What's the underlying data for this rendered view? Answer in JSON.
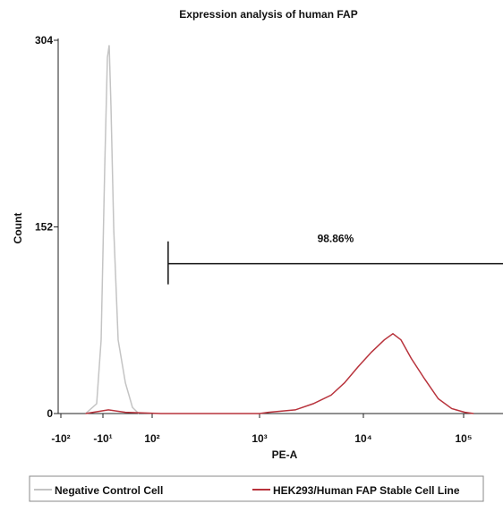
{
  "chart_data": {
    "type": "line",
    "title": "Expression analysis of human FAP",
    "x_label": "PE-A",
    "y_label": "Count",
    "xscale": "biexponential",
    "xlim": [
      -110,
      250000
    ],
    "xticks": [
      {
        "value": -100,
        "label": "-10²"
      },
      {
        "value": -10,
        "label": "-10¹"
      },
      {
        "value": 100,
        "label": "10²"
      },
      {
        "value": 1000,
        "label": "10³"
      },
      {
        "value": 10000,
        "label": "10⁴"
      },
      {
        "value": 100000,
        "label": "10⁵"
      }
    ],
    "ylim": [
      0,
      304
    ],
    "yticks": [
      0,
      152,
      304
    ],
    "legend": "bottom",
    "series": [
      {
        "name": "Negative Control Cell",
        "color": "#c4c4c4",
        "x": [
          -28,
          -15,
          -11.3,
          -8.1,
          -5.5,
          -4,
          -2.5,
          -0.3,
          3.2,
          10.1,
          20,
          34
        ],
        "values": [
          0,
          8,
          60,
          200,
          290,
          300,
          250,
          150,
          60,
          25,
          5,
          0
        ]
      },
      {
        "name": "HEK293/Human FAP Stable Cell Line",
        "color": "#b8333c",
        "x": [
          -28,
          -4.7,
          10,
          121,
          1000,
          1220,
          2210,
          3290,
          4890,
          6580,
          8880,
          12040,
          16180,
          19710,
          23700,
          30000,
          41000,
          55900,
          76000,
          103000,
          126000
        ],
        "values": [
          0,
          3,
          1,
          0,
          0,
          1,
          3,
          8,
          15,
          25,
          38,
          50,
          60,
          65,
          60,
          45,
          28,
          12,
          4,
          1,
          0
        ]
      }
    ],
    "gate": {
      "label": "98.86%",
      "range": [
        141,
        250000
      ],
      "y": 122
    }
  }
}
